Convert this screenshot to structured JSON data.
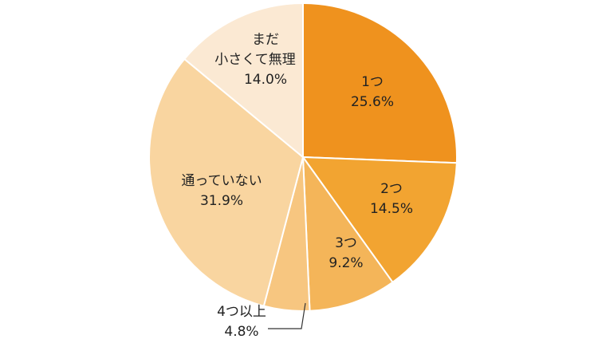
{
  "chart_data": {
    "type": "pie",
    "slices": [
      {
        "name": "1つ",
        "value": 25.6,
        "label": "25.6%",
        "color": "#ef921e"
      },
      {
        "name": "2つ",
        "value": 14.5,
        "label": "14.5%",
        "color": "#f2a431"
      },
      {
        "name": "3つ",
        "value": 9.2,
        "label": "9.2%",
        "color": "#f4b559"
      },
      {
        "name": "4つ以上",
        "value": 4.8,
        "label": "4.8%",
        "color": "#f7c680"
      },
      {
        "name": "通っていない",
        "value": 31.9,
        "label": "31.9%",
        "color": "#f9d5a0"
      },
      {
        "name": "まだ小さくて無理",
        "name_lines": [
          "まだ",
          "小さくて無理"
        ],
        "value": 14.0,
        "label": "14.0%",
        "color": "#fbe9d3"
      }
    ],
    "start": "12 o'clock",
    "direction": "clockwise"
  }
}
